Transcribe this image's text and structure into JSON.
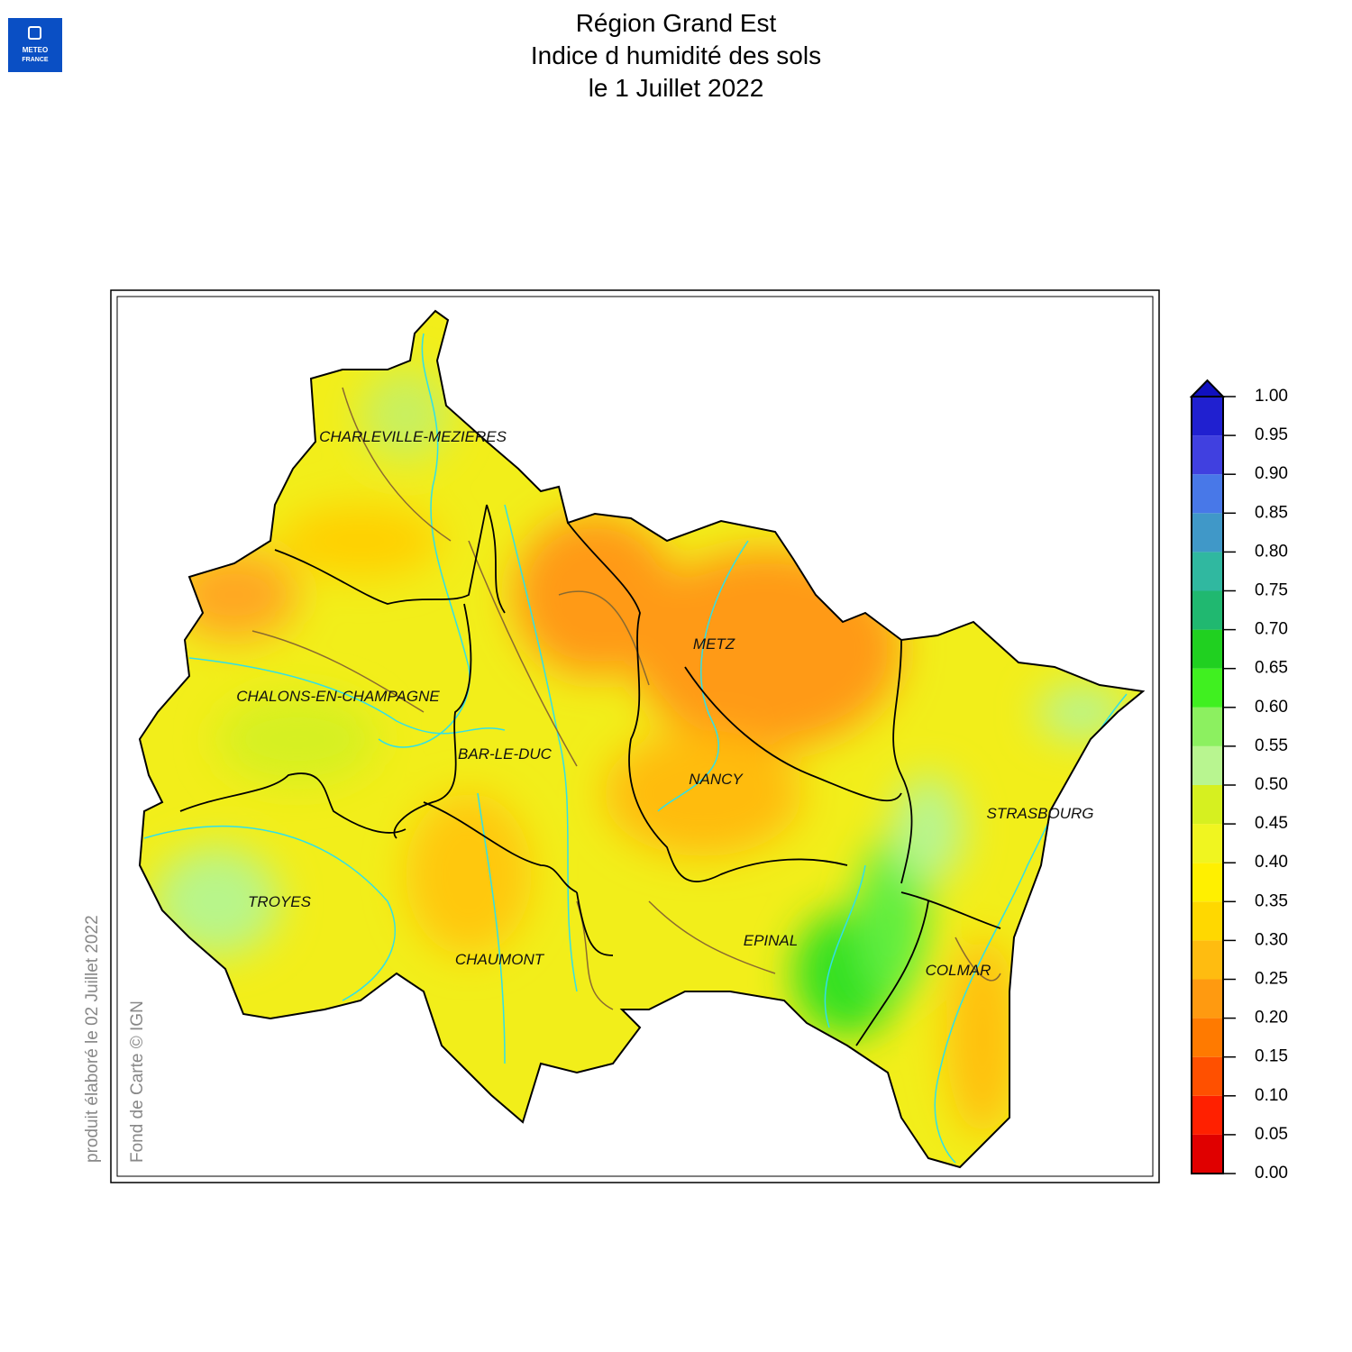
{
  "header": {
    "logo": [
      "METEO",
      "FRANCE"
    ],
    "title": [
      "Région Grand Est",
      "Indice d humidité des sols",
      "le 1 Juillet 2022"
    ]
  },
  "map": {
    "cities": [
      "CHARLEVILLE-MEZIERES",
      "METZ",
      "CHALONS-EN-CHAMPAGNE",
      "BAR-LE-DUC",
      "NANCY",
      "STRASBOURG",
      "TROYES",
      "EPINAL",
      "CHAUMONT",
      "COLMAR"
    ]
  },
  "legend": {
    "ticks": [
      {
        "value": 0,
        "label": "0.00"
      },
      {
        "value": 0.05,
        "label": "0.05"
      },
      {
        "value": 0.1,
        "label": "0.10"
      },
      {
        "value": 0.15,
        "label": "0.15"
      },
      {
        "value": 0.2,
        "label": "0.20"
      },
      {
        "value": 0.25,
        "label": "0.25"
      },
      {
        "value": 0.3,
        "label": "0.30"
      },
      {
        "value": 0.35,
        "label": "0.35"
      },
      {
        "value": 0.4,
        "label": "0.40"
      },
      {
        "value": 0.45,
        "label": "0.45"
      },
      {
        "value": 0.5,
        "label": "0.50"
      },
      {
        "value": 0.55,
        "label": "0.55"
      },
      {
        "value": 0.6,
        "label": "0.60"
      },
      {
        "value": 0.65,
        "label": "0.65"
      },
      {
        "value": 0.7,
        "label": "0.70"
      },
      {
        "value": 0.75,
        "label": "0.75"
      },
      {
        "value": 0.8,
        "label": "0.80"
      },
      {
        "value": 0.85,
        "label": "0.85"
      },
      {
        "value": 0.9,
        "label": "0.90"
      },
      {
        "value": 0.95,
        "label": "0.95"
      },
      {
        "value": 1,
        "label": "1.00"
      }
    ],
    "colors": [
      "#e00000",
      "#ff2000",
      "#ff5000",
      "#ff7a00",
      "#ff9a10",
      "#ffbc10",
      "#ffd800",
      "#fff000",
      "#f0f520",
      "#d6f020",
      "#b8f590",
      "#8cf060",
      "#40f020",
      "#20d020",
      "#20b870",
      "#30b8a0",
      "#4098c8",
      "#4878e8",
      "#4040e0",
      "#2020d0"
    ],
    "over_color": "#1010c0"
  },
  "credits": [
    "produit élaboré le 02 Juillet 2022",
    "Fond de Carte © IGN"
  ]
}
